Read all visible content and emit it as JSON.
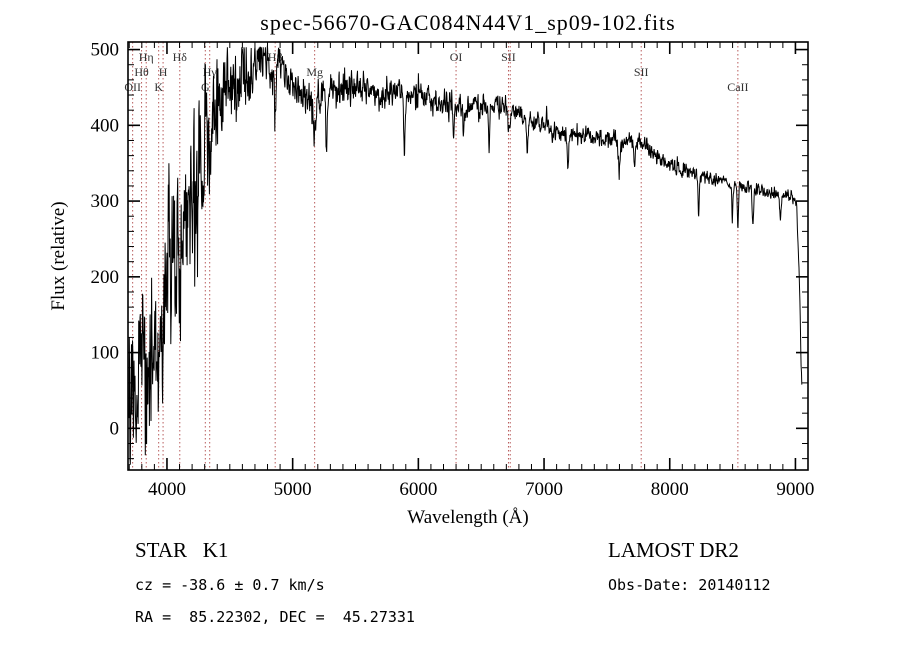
{
  "title": "spec-56670-GAC084N44V1_sp09-102.fits",
  "chart_data": {
    "type": "line",
    "title": "spec-56670-GAC084N44V1_sp09-102.fits",
    "xlabel": "Wavelength (Å)",
    "ylabel": "Flux (relative)",
    "xlim": [
      3690,
      9100
    ],
    "ylim": [
      -55,
      510
    ],
    "x_ticks": [
      4000,
      5000,
      6000,
      7000,
      8000,
      9000
    ],
    "y_ticks": [
      0,
      100,
      200,
      300,
      400,
      500
    ],
    "x_minor_step": 100,
    "y_minor_step": 20,
    "grid": false,
    "line_color": "#000000",
    "marker_color": "#b85c5c",
    "wave_start": 3698,
    "wave_end": 9052,
    "wave_step": 2.5,
    "continuum": [
      [
        3698,
        5
      ],
      [
        3720,
        70
      ],
      [
        3760,
        55
      ],
      [
        3800,
        110
      ],
      [
        3850,
        95
      ],
      [
        3900,
        140
      ],
      [
        3950,
        130
      ],
      [
        4000,
        220
      ],
      [
        4060,
        255
      ],
      [
        4120,
        250
      ],
      [
        4180,
        270
      ],
      [
        4240,
        300
      ],
      [
        4300,
        370
      ],
      [
        4360,
        410
      ],
      [
        4420,
        435
      ],
      [
        4480,
        455
      ],
      [
        4540,
        450
      ],
      [
        4600,
        475
      ],
      [
        4660,
        470
      ],
      [
        4720,
        485
      ],
      [
        4780,
        480
      ],
      [
        4840,
        478
      ],
      [
        4900,
        482
      ],
      [
        4960,
        455
      ],
      [
        5020,
        450
      ],
      [
        5100,
        442
      ],
      [
        5180,
        432
      ],
      [
        5260,
        448
      ],
      [
        5340,
        445
      ],
      [
        5420,
        452
      ],
      [
        5500,
        445
      ],
      [
        5600,
        448
      ],
      [
        5700,
        444
      ],
      [
        5800,
        448
      ],
      [
        5900,
        438
      ],
      [
        6000,
        442
      ],
      [
        6100,
        433
      ],
      [
        6200,
        428
      ],
      [
        6300,
        424
      ],
      [
        6400,
        428
      ],
      [
        6500,
        424
      ],
      [
        6600,
        428
      ],
      [
        6700,
        424
      ],
      [
        6800,
        414
      ],
      [
        6900,
        404
      ],
      [
        7000,
        397
      ],
      [
        7100,
        390
      ],
      [
        7200,
        386
      ],
      [
        7300,
        388
      ],
      [
        7400,
        385
      ],
      [
        7500,
        381
      ],
      [
        7600,
        377
      ],
      [
        7700,
        379
      ],
      [
        7800,
        374
      ],
      [
        7900,
        358
      ],
      [
        8000,
        346
      ],
      [
        8100,
        340
      ],
      [
        8200,
        336
      ],
      [
        8300,
        331
      ],
      [
        8400,
        327
      ],
      [
        8500,
        322
      ],
      [
        8600,
        318
      ],
      [
        8700,
        314
      ],
      [
        8800,
        311
      ],
      [
        8900,
        309
      ],
      [
        8970,
        306
      ],
      [
        9010,
        295
      ],
      [
        9030,
        200
      ],
      [
        9050,
        60
      ]
    ],
    "noise": [
      [
        3698,
        55
      ],
      [
        3900,
        50
      ],
      [
        4100,
        55
      ],
      [
        4300,
        45
      ],
      [
        4500,
        28
      ],
      [
        4700,
        20
      ],
      [
        4900,
        16
      ],
      [
        5100,
        13
      ],
      [
        5400,
        12
      ],
      [
        5800,
        10
      ],
      [
        6200,
        9
      ],
      [
        6600,
        8
      ],
      [
        7000,
        7
      ],
      [
        7600,
        6
      ],
      [
        8200,
        5
      ],
      [
        9050,
        4
      ]
    ],
    "features": [
      [
        3750,
        60,
        5
      ],
      [
        3889,
        70,
        5
      ],
      [
        3934,
        110,
        6
      ],
      [
        3969,
        90,
        6
      ],
      [
        4102,
        90,
        6
      ],
      [
        4340,
        90,
        6
      ],
      [
        4861,
        80,
        7
      ],
      [
        5175,
        45,
        10
      ],
      [
        5270,
        80,
        5
      ],
      [
        5890,
        85,
        5
      ],
      [
        6280,
        35,
        5
      ],
      [
        6360,
        40,
        5
      ],
      [
        6563,
        55,
        5
      ],
      [
        6720,
        30,
        6
      ],
      [
        6867,
        45,
        7
      ],
      [
        7190,
        45,
        6
      ],
      [
        7600,
        40,
        8
      ],
      [
        7720,
        35,
        5
      ],
      [
        8230,
        45,
        5
      ],
      [
        8498,
        40,
        5
      ],
      [
        8542,
        55,
        5
      ],
      [
        8662,
        45,
        5
      ],
      [
        8880,
        40,
        5
      ]
    ],
    "spectral_lines": [
      {
        "label": "OII",
        "wavelength": 3727,
        "row": 3
      },
      {
        "label": "Hθ",
        "wavelength": 3798,
        "row": 2
      },
      {
        "label": "Hη",
        "wavelength": 3835,
        "row": 1
      },
      {
        "label": "K",
        "wavelength": 3934,
        "row": 3
      },
      {
        "label": "H",
        "wavelength": 3969,
        "row": 2
      },
      {
        "label": "Hδ",
        "wavelength": 4102,
        "row": 1
      },
      {
        "label": "G",
        "wavelength": 4305,
        "row": 3
      },
      {
        "label": "Hγ",
        "wavelength": 4340,
        "row": 2
      },
      {
        "label": "Hβ",
        "wavelength": 4861,
        "row": 1
      },
      {
        "label": "Mg",
        "wavelength": 5175,
        "row": 2
      },
      {
        "label": "OI",
        "wavelength": 6300,
        "row": 1
      },
      {
        "label": "SII",
        "wavelength": 6717,
        "row": 1
      },
      {
        "label": "SII",
        "wavelength": 7773,
        "row": 2
      },
      {
        "label": "CaII",
        "wavelength": 8542,
        "row": 3
      }
    ],
    "extra_marker_lines": [
      6731
    ]
  },
  "footer": {
    "left": {
      "class_line": "STAR   K1",
      "cz_line": "cz = -38.6 ± 0.7 km/s",
      "radec_line": "RA =  85.22302, DEC =  45.27331"
    },
    "right": {
      "survey_line": "LAMOST DR2",
      "obsdate_line": "Obs-Date: 20140112"
    }
  }
}
